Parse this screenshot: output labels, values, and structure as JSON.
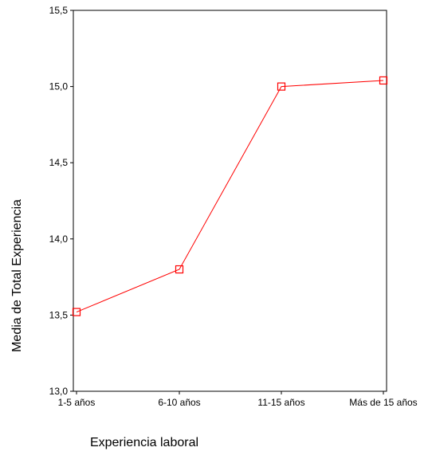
{
  "chart_data": {
    "type": "line",
    "categories": [
      "1-5 años",
      "6-10 años",
      "11-15 años",
      "Más de 15 años"
    ],
    "series": [
      {
        "values": [
          13.52,
          13.8,
          15.0,
          15.04
        ],
        "color": "#ff0000",
        "marker": "square"
      }
    ],
    "xlabel": "Experiencia laboral",
    "ylabel": "Media de Total Experiencia",
    "ylim": [
      13.0,
      15.5
    ],
    "yticks": [
      "13,0",
      "13,5",
      "14,0",
      "14,5",
      "15,0",
      "15,5"
    ],
    "grid": false
  }
}
